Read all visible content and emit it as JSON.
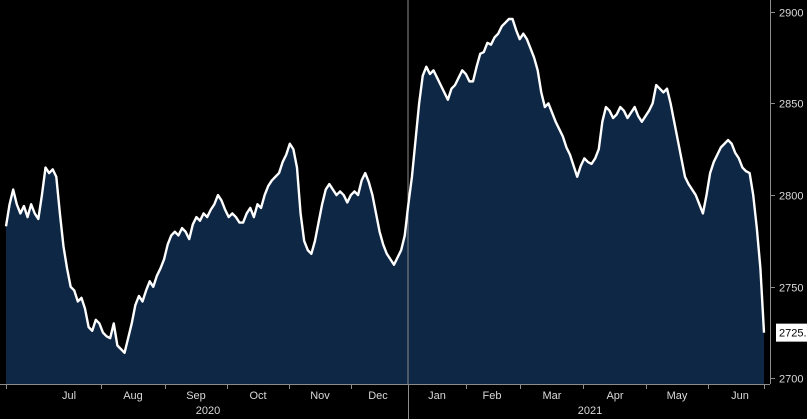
{
  "chart_data": {
    "type": "area",
    "title": "",
    "xlabel": "",
    "ylabel": "",
    "ylim": [
      2697,
      2902
    ],
    "yticks": [
      2700,
      2750,
      2800,
      2850,
      2900
    ],
    "month_labels": [
      "Jul",
      "Aug",
      "Sep",
      "Oct",
      "Nov",
      "Dec",
      "Jan",
      "Feb",
      "Mar",
      "Apr",
      "May",
      "Jun"
    ],
    "year_labels": [
      "2020",
      "2021"
    ],
    "last_value_label": "2725.",
    "grid": false,
    "colors": {
      "fill": "#0e2744",
      "line": "#ffffff",
      "background": "#000000",
      "axis": "#8c8c8c",
      "label_box": "#ffffff"
    },
    "series": [
      {
        "values": [
          2783,
          2795,
          2803,
          2795,
          2790,
          2794,
          2788,
          2795,
          2790,
          2787,
          2800,
          2815,
          2812,
          2814,
          2810,
          2790,
          2772,
          2760,
          2750,
          2748,
          2742,
          2744,
          2738,
          2728,
          2726,
          2732,
          2730,
          2725,
          2723,
          2722,
          2730,
          2718,
          2716,
          2714,
          2722,
          2730,
          2740,
          2745,
          2742,
          2748,
          2753,
          2750,
          2756,
          2760,
          2765,
          2773,
          2778,
          2780,
          2778,
          2782,
          2780,
          2776,
          2784,
          2788,
          2786,
          2790,
          2788,
          2792,
          2795,
          2800,
          2797,
          2792,
          2788,
          2790,
          2788,
          2785,
          2785,
          2790,
          2793,
          2788,
          2795,
          2793,
          2800,
          2805,
          2808,
          2810,
          2812,
          2818,
          2822,
          2828,
          2825,
          2815,
          2790,
          2775,
          2770,
          2768,
          2775,
          2785,
          2795,
          2803,
          2806,
          2803,
          2800,
          2802,
          2800,
          2796,
          2800,
          2802,
          2800,
          2808,
          2812,
          2807,
          2800,
          2790,
          2780,
          2773,
          2768,
          2765,
          2762,
          2766,
          2770,
          2778,
          2795,
          2810,
          2830,
          2850,
          2865,
          2870,
          2866,
          2868,
          2864,
          2860,
          2856,
          2852,
          2858,
          2860,
          2864,
          2868,
          2866,
          2862,
          2862,
          2870,
          2877,
          2878,
          2883,
          2882,
          2886,
          2888,
          2892,
          2894,
          2896,
          2896,
          2890,
          2885,
          2888,
          2885,
          2880,
          2875,
          2868,
          2856,
          2848,
          2850,
          2845,
          2840,
          2836,
          2832,
          2826,
          2822,
          2816,
          2810,
          2816,
          2820,
          2818,
          2817,
          2820,
          2825,
          2840,
          2848,
          2846,
          2842,
          2844,
          2848,
          2846,
          2842,
          2845,
          2848,
          2843,
          2840,
          2843,
          2846,
          2850,
          2860,
          2858,
          2856,
          2858,
          2850,
          2840,
          2830,
          2820,
          2810,
          2806,
          2803,
          2800,
          2795,
          2790,
          2800,
          2812,
          2818,
          2822,
          2826,
          2828,
          2830,
          2828,
          2823,
          2820,
          2815,
          2813,
          2812,
          2800,
          2782,
          2760,
          2725
        ]
      }
    ]
  }
}
